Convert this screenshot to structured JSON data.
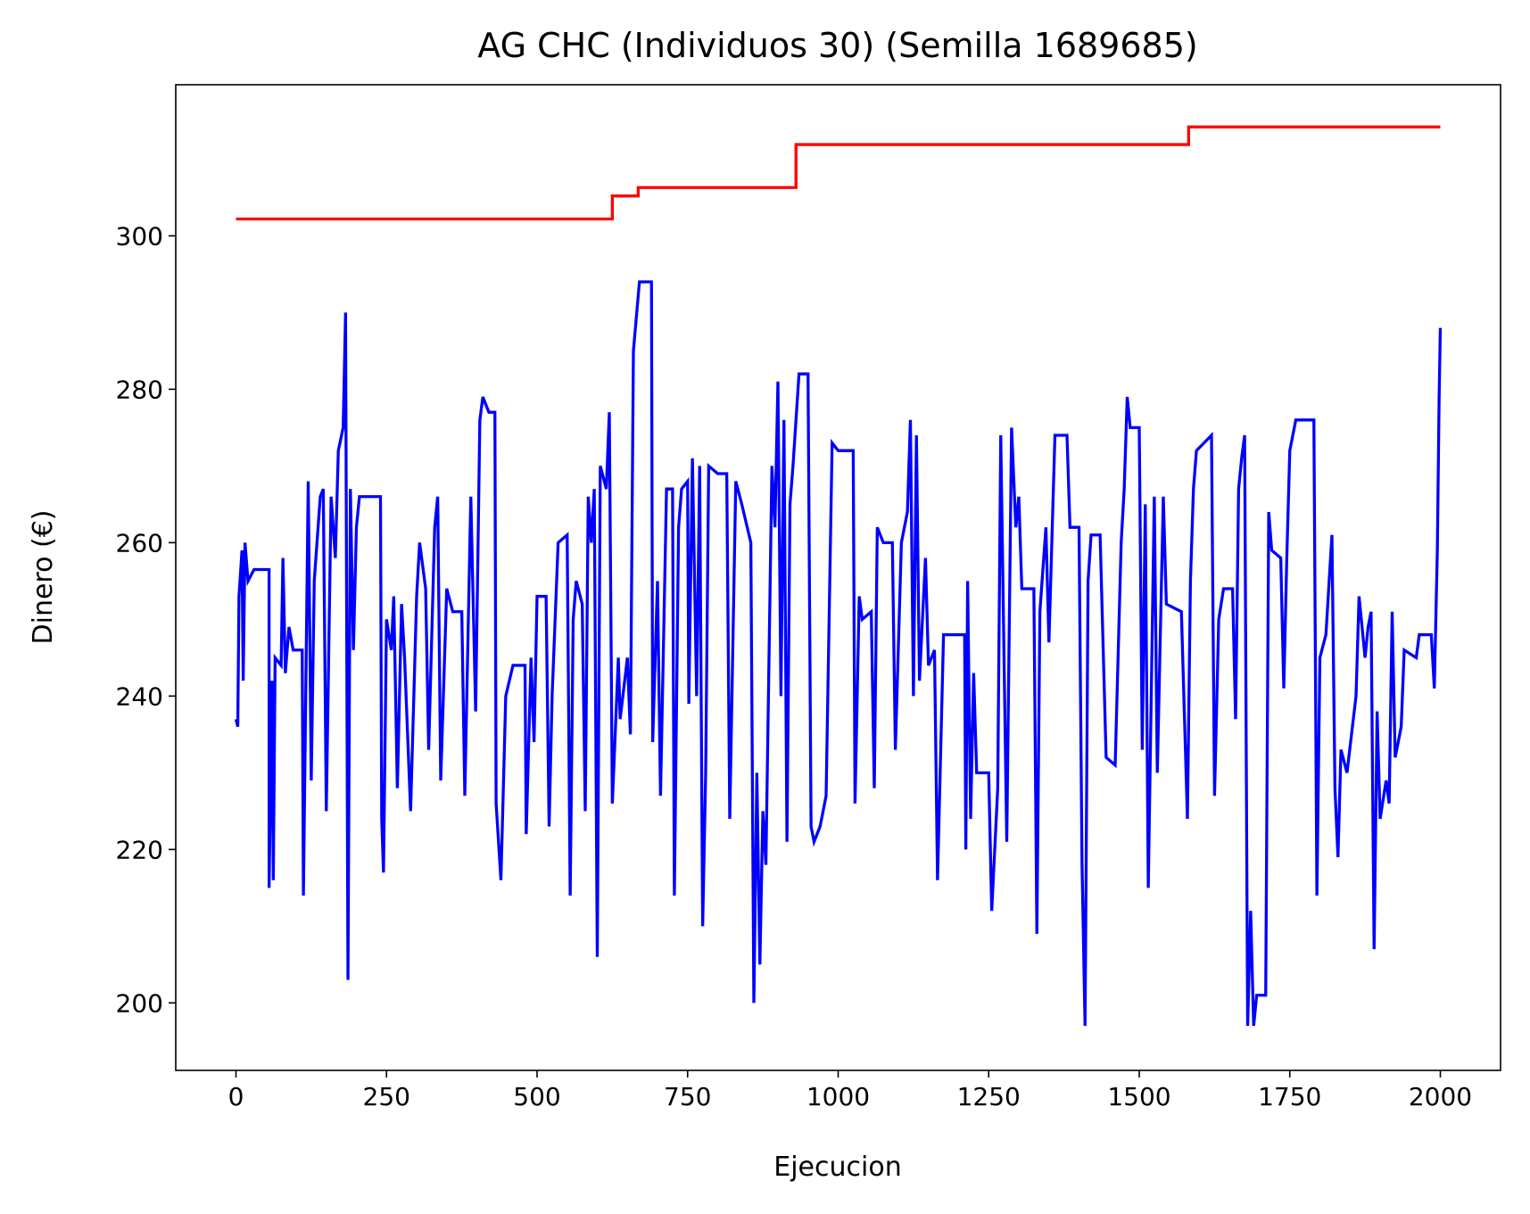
{
  "chart_data": {
    "type": "line",
    "title": "AG CHC (Individuos 30) (Semilla 1689685)",
    "xlabel": "Ejecucion",
    "ylabel": "Dinero (€)",
    "xlim": [
      -100,
      2100
    ],
    "ylim": [
      191.2,
      319.7
    ],
    "xticks": [
      0,
      250,
      500,
      750,
      1000,
      1250,
      1500,
      1750,
      2000
    ],
    "yticks": [
      200,
      220,
      240,
      260,
      280,
      300
    ],
    "series": [
      {
        "color": "#0000ff",
        "x": [
          0,
          3,
          5,
          10,
          12,
          15,
          20,
          30,
          55,
          55,
          60,
          62,
          65,
          75,
          78,
          82,
          88,
          95,
          110,
          112,
          120,
          125,
          130,
          140,
          145,
          150,
          158,
          165,
          170,
          178,
          182,
          186,
          190,
          195,
          200,
          205,
          240,
          242,
          245,
          250,
          258,
          262,
          268,
          275,
          280,
          290,
          300,
          305,
          315,
          320,
          330,
          335,
          340,
          350,
          360,
          375,
          380,
          390,
          398,
          405,
          410,
          420,
          430,
          432,
          440,
          448,
          460,
          480,
          482,
          490,
          495,
          500,
          515,
          520,
          525,
          535,
          550,
          555,
          560,
          565,
          575,
          580,
          585,
          590,
          595,
          600,
          605,
          615,
          620,
          625,
          635,
          638,
          650,
          655,
          660,
          670,
          690,
          692,
          700,
          705,
          715,
          725,
          728,
          735,
          740,
          750,
          752,
          758,
          765,
          770,
          775,
          780,
          785,
          800,
          815,
          820,
          830,
          840,
          855,
          860,
          865,
          870,
          875,
          880,
          890,
          895,
          900,
          905,
          910,
          915,
          920,
          925,
          935,
          950,
          955,
          960,
          970,
          980,
          990,
          1000,
          1025,
          1028,
          1035,
          1040,
          1055,
          1060,
          1065,
          1075,
          1090,
          1095,
          1105,
          1115,
          1120,
          1125,
          1130,
          1135,
          1145,
          1150,
          1160,
          1165,
          1175,
          1210,
          1212,
          1215,
          1220,
          1225,
          1230,
          1250,
          1255,
          1265,
          1270,
          1280,
          1288,
          1295,
          1300,
          1305,
          1325,
          1330,
          1335,
          1345,
          1350,
          1360,
          1380,
          1385,
          1400,
          1405,
          1410,
          1415,
          1420,
          1435,
          1445,
          1460,
          1470,
          1475,
          1480,
          1485,
          1500,
          1505,
          1510,
          1515,
          1525,
          1530,
          1540,
          1545,
          1570,
          1580,
          1585,
          1590,
          1595,
          1620,
          1625,
          1632,
          1640,
          1655,
          1660,
          1665,
          1670,
          1675,
          1680,
          1685,
          1690,
          1695,
          1710,
          1715,
          1720,
          1735,
          1740,
          1745,
          1750,
          1760,
          1790,
          1795,
          1800,
          1810,
          1820,
          1825,
          1830,
          1835,
          1845,
          1860,
          1865,
          1875,
          1880,
          1885,
          1890,
          1895,
          1900,
          1910,
          1915,
          1920,
          1925,
          1935,
          1940,
          1960,
          1965,
          1985,
          1990,
          1995,
          1998,
          2000
        ],
        "values": [
          237,
          236,
          253,
          259,
          242,
          260,
          255,
          256.5,
          256.5,
          215,
          242,
          216,
          245,
          244,
          258,
          243,
          249,
          246,
          246,
          214,
          268,
          229,
          255,
          266,
          267,
          225,
          266,
          258,
          272,
          275,
          290,
          203,
          267,
          246,
          262,
          266,
          266,
          224,
          217,
          250,
          246,
          253,
          228,
          252,
          245,
          225,
          253,
          260,
          254,
          233,
          262,
          266,
          229,
          254,
          251,
          251,
          227,
          266,
          238,
          276,
          279,
          277,
          277,
          226,
          216,
          240,
          244,
          244,
          222,
          245,
          234,
          253,
          253,
          223,
          240,
          260,
          261,
          214,
          250,
          255,
          252,
          225,
          266,
          260,
          267,
          206,
          270,
          267,
          277,
          226,
          245,
          237,
          245,
          235,
          285,
          294,
          294,
          234,
          255,
          227,
          267,
          267,
          214,
          262,
          267,
          268,
          239,
          271,
          240,
          270,
          210,
          230,
          270,
          269,
          269,
          224,
          268,
          265,
          260,
          200,
          230,
          205,
          225,
          218,
          270,
          262,
          281,
          240,
          276,
          221,
          265,
          270,
          282,
          282,
          223,
          221,
          223,
          227,
          273,
          272,
          272,
          226,
          253,
          250,
          251,
          228,
          262,
          260,
          260,
          233,
          260,
          264,
          276,
          240,
          274,
          242,
          258,
          244,
          246,
          216,
          248,
          248,
          220,
          255,
          224,
          243,
          230,
          230,
          212,
          228,
          274,
          221,
          275,
          262,
          266,
          254,
          254,
          209,
          251,
          262,
          247,
          274,
          274,
          262,
          262,
          218,
          197,
          255,
          261,
          261,
          232,
          231,
          260,
          267,
          279,
          275,
          275,
          233,
          265,
          215,
          266,
          230,
          266,
          252,
          251,
          224,
          255,
          267,
          272,
          274,
          227,
          250,
          254,
          254,
          237,
          267,
          271,
          274,
          197,
          212,
          197,
          201,
          201,
          264,
          259,
          258,
          241,
          258,
          272,
          276,
          276,
          214,
          245,
          248,
          261,
          228,
          219,
          233,
          230,
          240,
          253,
          245,
          249,
          251,
          207,
          238,
          224,
          229,
          226,
          251,
          232,
          236,
          246,
          245,
          248,
          248,
          241,
          259,
          279,
          288
        ]
      },
      {
        "color": "#ff0000",
        "x": [
          0,
          625,
          625,
          668,
          668,
          930,
          930,
          1582,
          1582,
          2000
        ],
        "values": [
          302.2,
          302.2,
          305.2,
          305.2,
          306.3,
          306.3,
          311.9,
          311.9,
          314.2,
          314.2
        ]
      }
    ]
  }
}
